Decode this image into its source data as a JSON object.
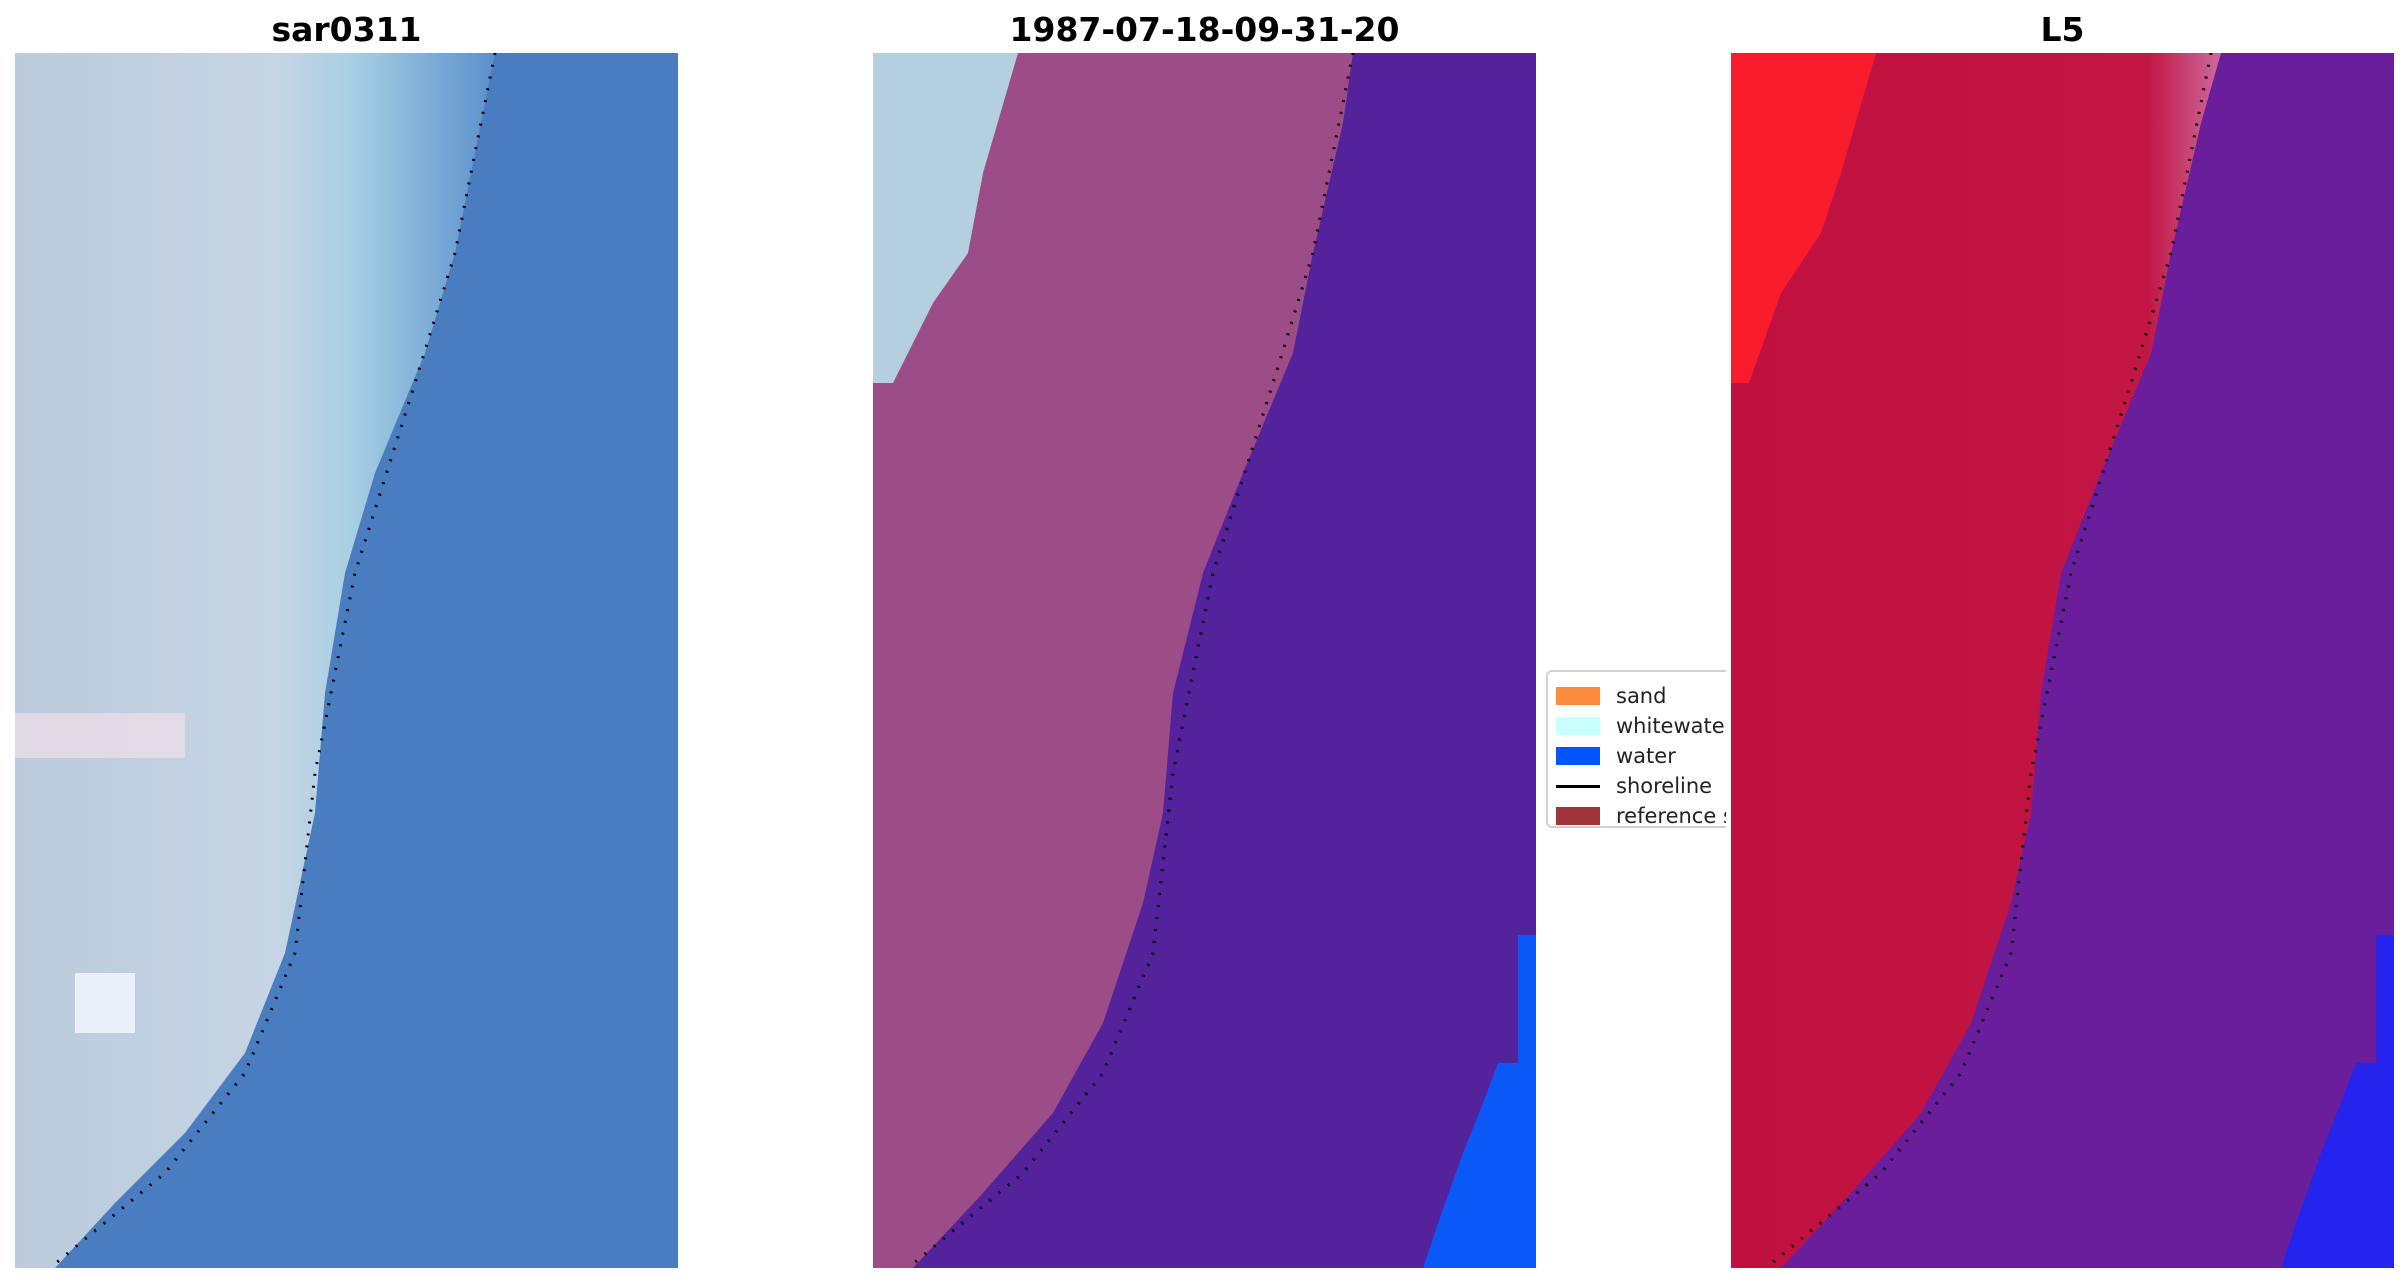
{
  "panels": [
    {
      "title": "sar0311"
    },
    {
      "title": "1987-07-18-09-31-20"
    },
    {
      "title": "L5"
    }
  ],
  "legend": {
    "items": [
      {
        "label": "sand",
        "color": "#fb8c3c",
        "kind": "patch"
      },
      {
        "label": "whitewater",
        "color": "#c8ffff",
        "kind": "patch"
      },
      {
        "label": "water",
        "color": "#0055ff",
        "kind": "patch"
      },
      {
        "label": "shoreline",
        "color": "#000000",
        "kind": "line"
      },
      {
        "label": "reference s",
        "color": "#a0343a",
        "kind": "patch"
      }
    ]
  },
  "colors": {
    "sand_rgb": "#b8c8dc",
    "water_rgb": "#4a7cc0",
    "sand_overlay": "#9c4c86",
    "water_overlay": "#54229a",
    "whitewater_overlay": "#b4d0e0",
    "water_class": "#0a58f8",
    "sand_index": "#c01040",
    "sand_index_bright": "#f81c2c",
    "water_index": "#6a1e9c",
    "water_index_bright": "#2424ee"
  }
}
